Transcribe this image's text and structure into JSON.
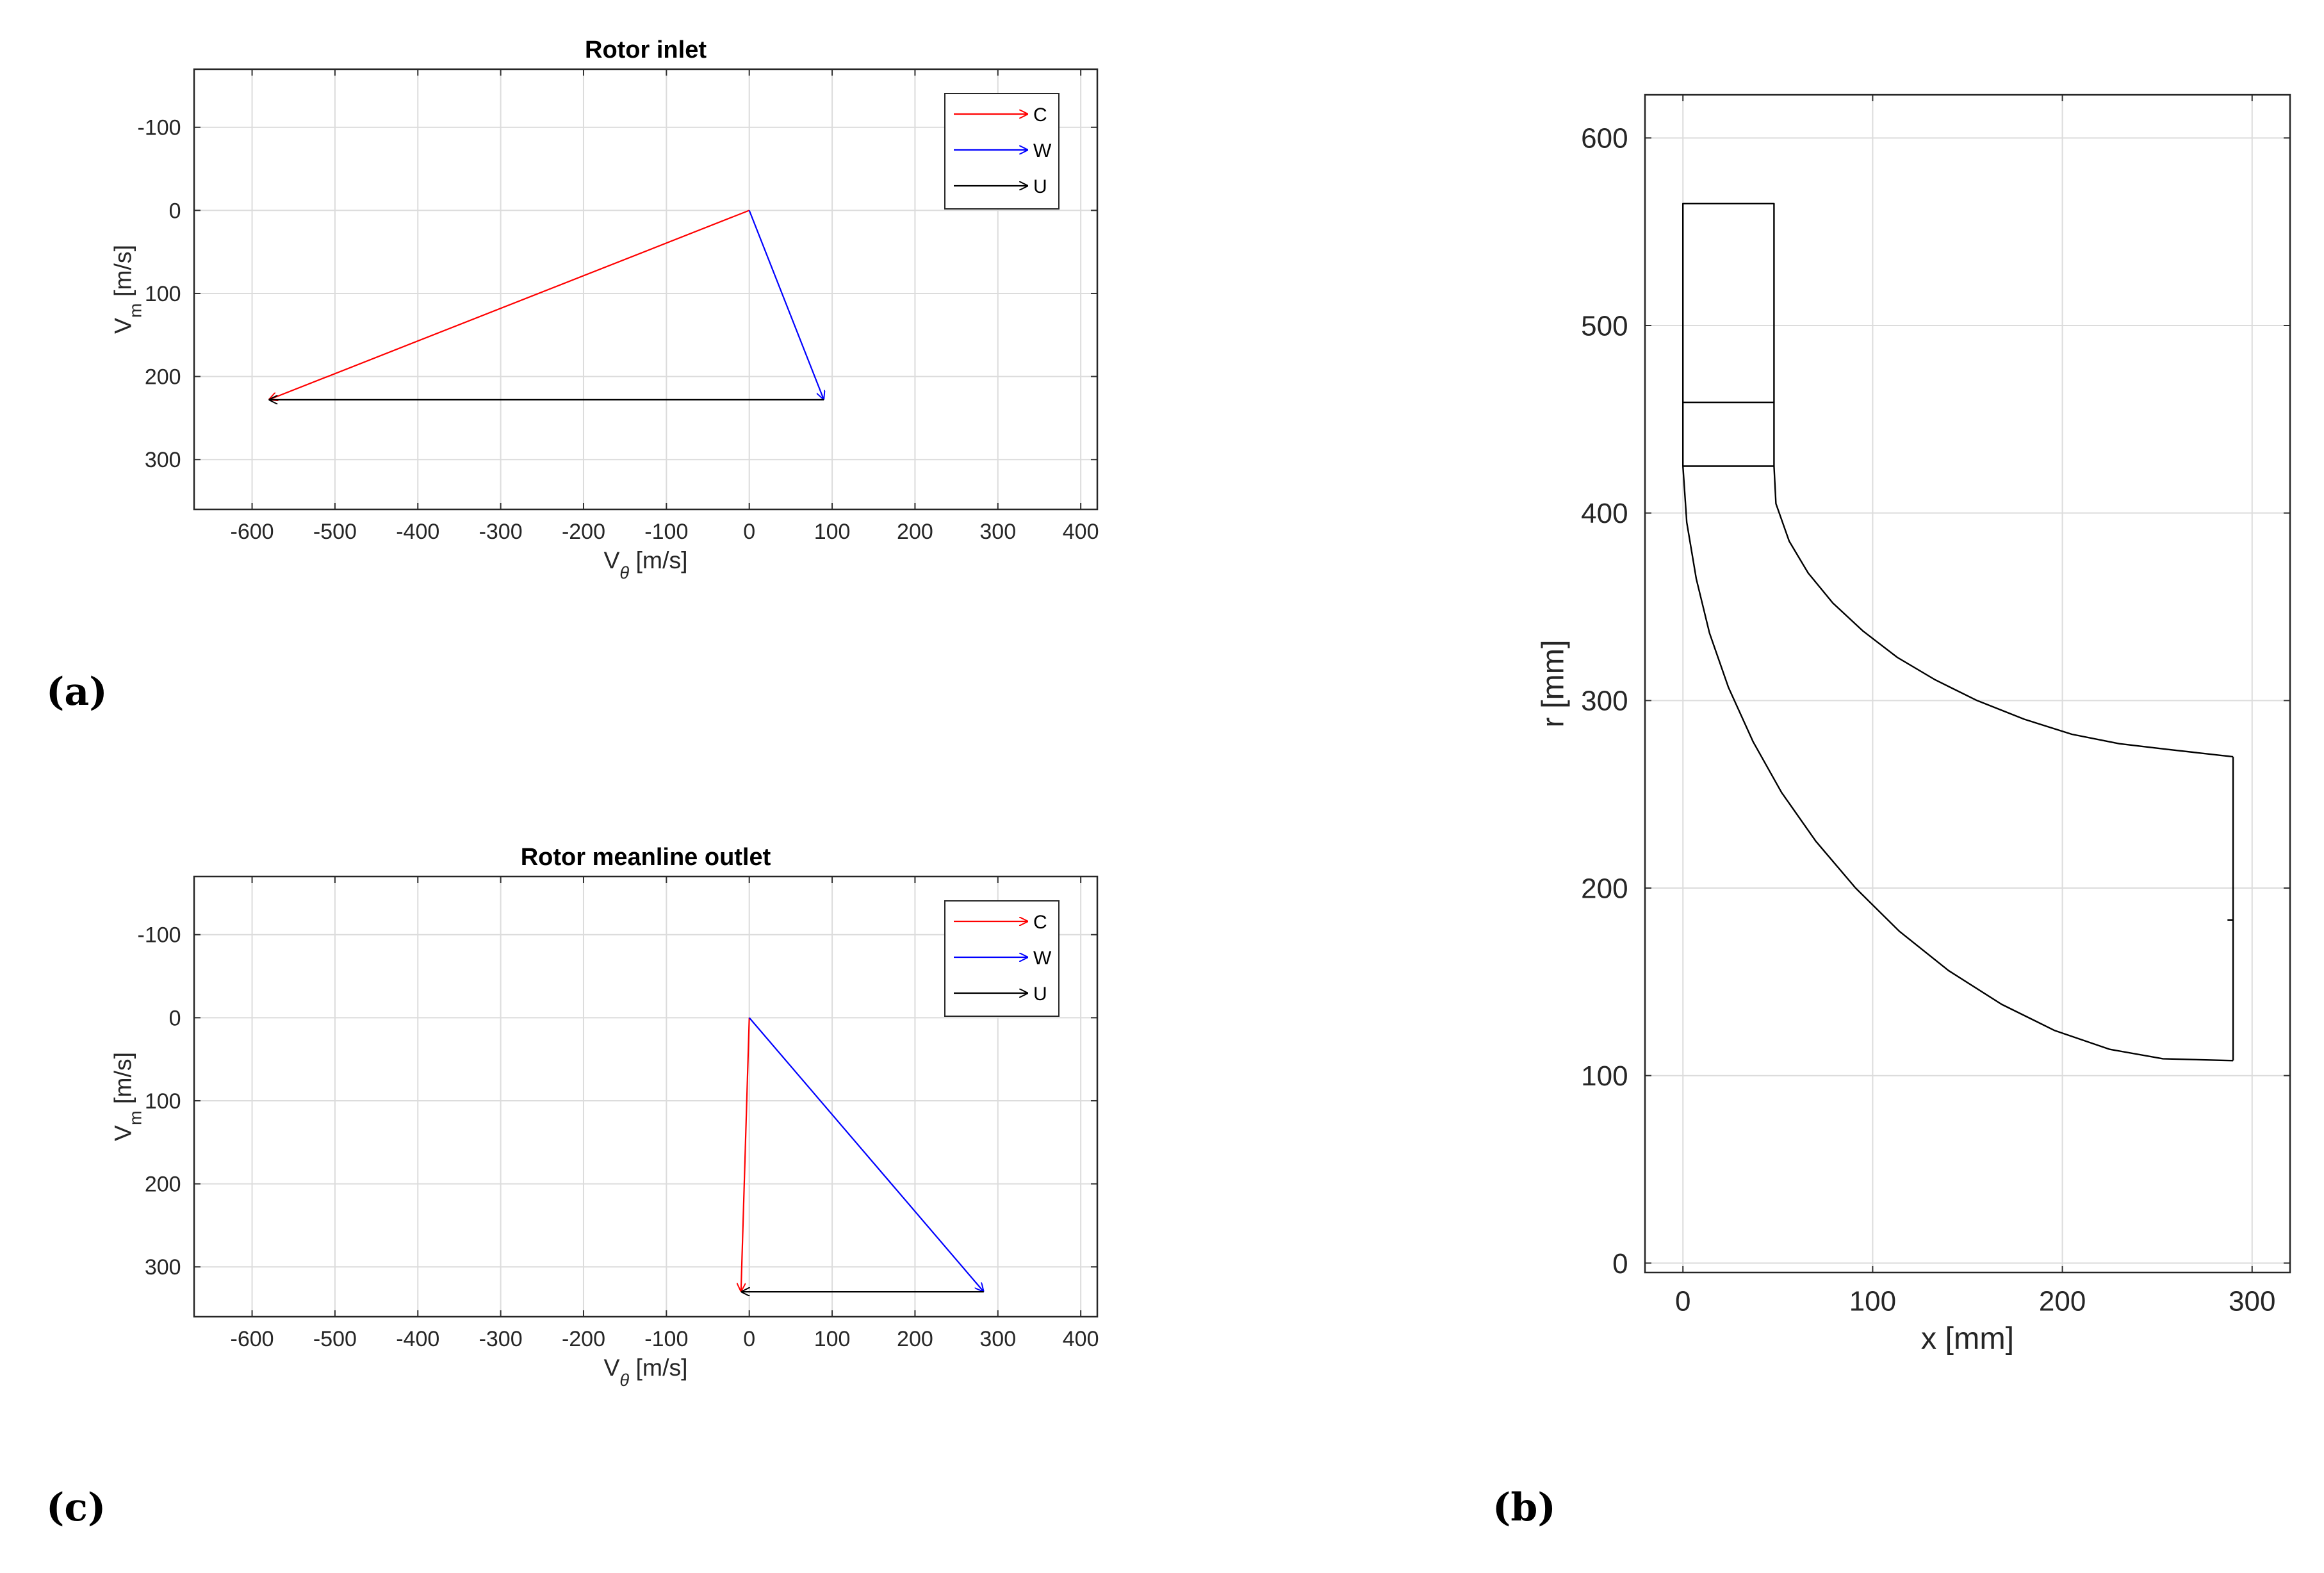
{
  "panels": {
    "a": "(a)",
    "b": "(b)",
    "c": "(c)"
  },
  "colors": {
    "C": "#ff0000",
    "W": "#0000ff",
    "U": "#000000"
  },
  "chart_data": [
    {
      "id": "a",
      "type": "line",
      "title": "Rotor inlet",
      "xlabel": "V",
      "xlabel_sub": "θ",
      "xlabel_unit": " [m/s]",
      "ylabel": "V",
      "ylabel_sub": "m",
      "ylabel_unit": " [m/s]",
      "xlim": [
        -670,
        420
      ],
      "ylim": [
        -170,
        360
      ],
      "y_reversed": true,
      "grid": true,
      "xticks": [
        -600,
        -500,
        -400,
        -300,
        -200,
        -100,
        0,
        100,
        200,
        300,
        400
      ],
      "yticks": [
        -100,
        0,
        100,
        200,
        300
      ],
      "legend_position": "top-right",
      "series": [
        {
          "name": "C",
          "from": [
            0,
            0
          ],
          "to": [
            -580,
            228
          ]
        },
        {
          "name": "W",
          "from": [
            0,
            0
          ],
          "to": [
            90,
            228
          ]
        },
        {
          "name": "U",
          "from": [
            90,
            228
          ],
          "to": [
            -580,
            228
          ]
        }
      ]
    },
    {
      "id": "c",
      "type": "line",
      "title": "Rotor meanline outlet",
      "xlabel": "V",
      "xlabel_sub": "θ",
      "xlabel_unit": " [m/s]",
      "ylabel": "V",
      "ylabel_sub": "m",
      "ylabel_unit": " [m/s]",
      "xlim": [
        -670,
        420
      ],
      "ylim": [
        -170,
        360
      ],
      "y_reversed": true,
      "grid": true,
      "xticks": [
        -600,
        -500,
        -400,
        -300,
        -200,
        -100,
        0,
        100,
        200,
        300,
        400
      ],
      "yticks": [
        -100,
        0,
        100,
        200,
        300
      ],
      "legend_position": "top-right",
      "series": [
        {
          "name": "C",
          "from": [
            0,
            0
          ],
          "to": [
            -10,
            330
          ]
        },
        {
          "name": "W",
          "from": [
            0,
            0
          ],
          "to": [
            283,
            330
          ]
        },
        {
          "name": "U",
          "from": [
            283,
            330
          ],
          "to": [
            -10,
            330
          ]
        }
      ]
    },
    {
      "id": "b",
      "type": "line",
      "title": "",
      "xlabel": "x [mm]",
      "ylabel": "r [mm]",
      "xlim": [
        -20,
        320
      ],
      "ylim": [
        -5,
        623
      ],
      "grid": true,
      "xticks": [
        0,
        100,
        200,
        300
      ],
      "yticks": [
        0,
        100,
        200,
        300,
        400,
        500,
        600
      ],
      "series": [
        {
          "name": "inlet-duct",
          "points": [
            [
              0,
              425
            ],
            [
              0,
              565
            ],
            [
              48,
              565
            ],
            [
              48,
              425
            ],
            [
              0,
              425
            ]
          ]
        },
        {
          "name": "inlet-mid-line",
          "points": [
            [
              0,
              459
            ],
            [
              48,
              459
            ]
          ]
        },
        {
          "name": "shroud",
          "points": [
            [
              48,
              425
            ],
            [
              49,
              405
            ],
            [
              56,
              385
            ],
            [
              66,
              368
            ],
            [
              79,
              352
            ],
            [
              95,
              337
            ],
            [
              113,
              323
            ],
            [
              133,
              311
            ],
            [
              155,
              300
            ],
            [
              180,
              290
            ],
            [
              205,
              282
            ],
            [
              230,
              277
            ],
            [
              255,
              274
            ],
            [
              290,
              270
            ]
          ]
        },
        {
          "name": "hub",
          "points": [
            [
              0,
              425
            ],
            [
              2,
              395
            ],
            [
              7,
              365
            ],
            [
              14,
              336
            ],
            [
              24,
              307
            ],
            [
              37,
              278
            ],
            [
              52,
              251
            ],
            [
              70,
              225
            ],
            [
              91,
              200
            ],
            [
              114,
              177
            ],
            [
              140,
              156
            ],
            [
              168,
              138
            ],
            [
              196,
              124
            ],
            [
              225,
              114
            ],
            [
              253,
              109
            ],
            [
              290,
              108
            ]
          ]
        },
        {
          "name": "outlet",
          "points": [
            [
              290,
              108
            ],
            [
              290,
              270
            ]
          ]
        },
        {
          "name": "outlet-tick",
          "points": [
            [
              287,
              183
            ],
            [
              290,
              183
            ]
          ]
        }
      ]
    }
  ]
}
